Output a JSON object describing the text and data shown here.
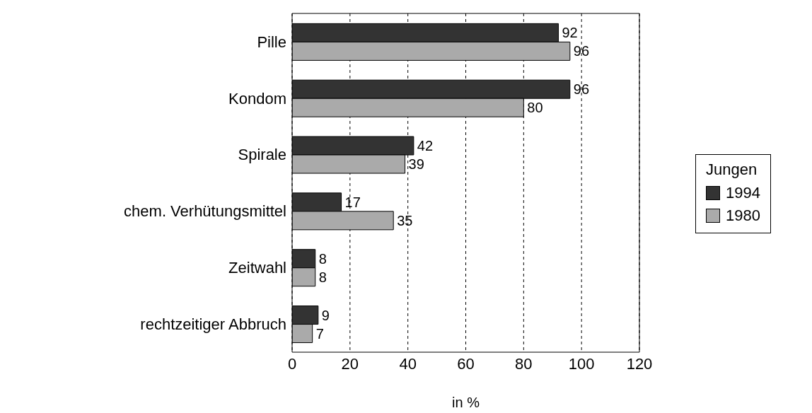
{
  "chart_data": {
    "type": "bar",
    "orientation": "horizontal",
    "categories": [
      "Pille",
      "Kondom",
      "Spirale",
      "chem. Verhütungsmittel",
      "Zeitwahl",
      "rechtzeitiger Abbruch"
    ],
    "series": [
      {
        "name": "1994",
        "color": "#333333",
        "values": [
          92,
          96,
          42,
          17,
          8,
          9
        ]
      },
      {
        "name": "1980",
        "color": "#aaaaaa",
        "values": [
          96,
          80,
          39,
          35,
          8,
          7
        ]
      }
    ],
    "xlabel": "in %",
    "legend_title": "Jungen",
    "legend": "right",
    "xlim": [
      0,
      120
    ],
    "xticks": [
      0,
      20,
      40,
      60,
      80,
      100,
      120
    ],
    "grid": "x",
    "data_labels": true
  }
}
